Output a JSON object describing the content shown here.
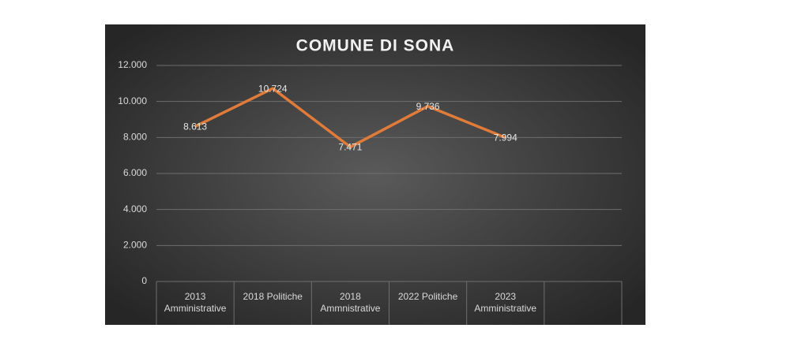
{
  "chart_data": {
    "type": "line",
    "title": "COMUNE DI SONA",
    "categories": [
      "2013 Amministrative",
      "2018 Politiche",
      "2018 Ammnistrative",
      "2022 Politiche",
      "2023 Amministrative",
      null
    ],
    "series": [
      {
        "name": "COMUNE DI SONA",
        "color": "#e07b39",
        "values": [
          8613,
          10724,
          7471,
          9736,
          7994,
          null
        ],
        "value_labels": [
          "8.613",
          "10.724",
          "7.471",
          "9.736",
          "7.994",
          null
        ]
      }
    ],
    "ylim": [
      0,
      12000
    ],
    "yticks": [
      0,
      {
        "value": 2000,
        "label": "2.000"
      },
      {
        "value": 4000,
        "label": "4.000"
      },
      {
        "value": 6000,
        "label": "6.000"
      },
      {
        "value": 8000,
        "label": "8.000"
      },
      {
        "value": 10000,
        "label": "10.000"
      },
      {
        "value": 12000,
        "label": "12.000"
      }
    ],
    "grid": true
  }
}
